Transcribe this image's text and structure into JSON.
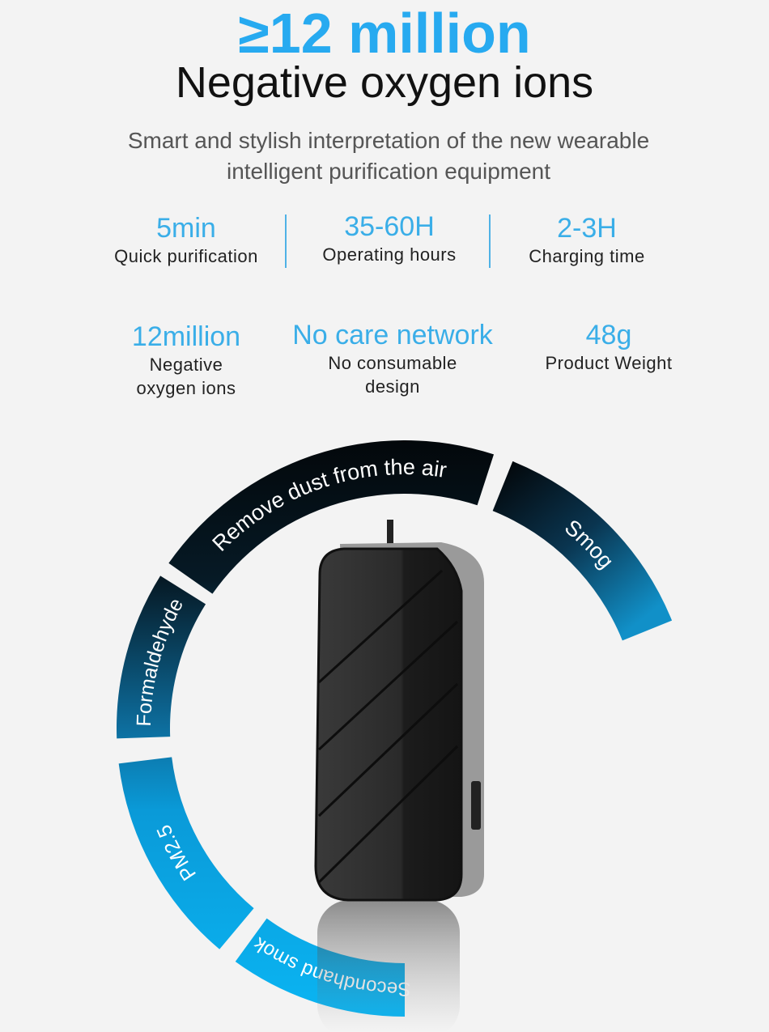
{
  "header": {
    "headline": "≥12 million",
    "subhead": "Negative oxygen ions",
    "tagline_line1": "Smart and stylish interpretation of the new wearable",
    "tagline_line2": "intelligent purification equipment"
  },
  "stats_row1": [
    {
      "value": "5min",
      "label": "Quick purification"
    },
    {
      "value": "35-60H",
      "label": "Operating hours"
    },
    {
      "value": "2-3H",
      "label": "Charging time"
    }
  ],
  "stats_row2": [
    {
      "value": "12million",
      "label_line1": "Negative",
      "label_line2": "oxygen ions"
    },
    {
      "value": "No care network",
      "label_line1": "No consumable",
      "label_line2": "design"
    },
    {
      "value": "48g",
      "label_line1": "Product Weight",
      "label_line2": ""
    }
  ],
  "ring_segments": [
    {
      "label": "Remove dust from the air"
    },
    {
      "label": "Smog"
    },
    {
      "label": "Formaldehyde"
    },
    {
      "label": "PM2.5"
    },
    {
      "label": "Secondhand smoke"
    }
  ],
  "colors": {
    "accent": "#27aaf0",
    "ring_dark": "#050a0e",
    "ring_blue": "#0aa9ec",
    "background": "#f3f3f3"
  }
}
